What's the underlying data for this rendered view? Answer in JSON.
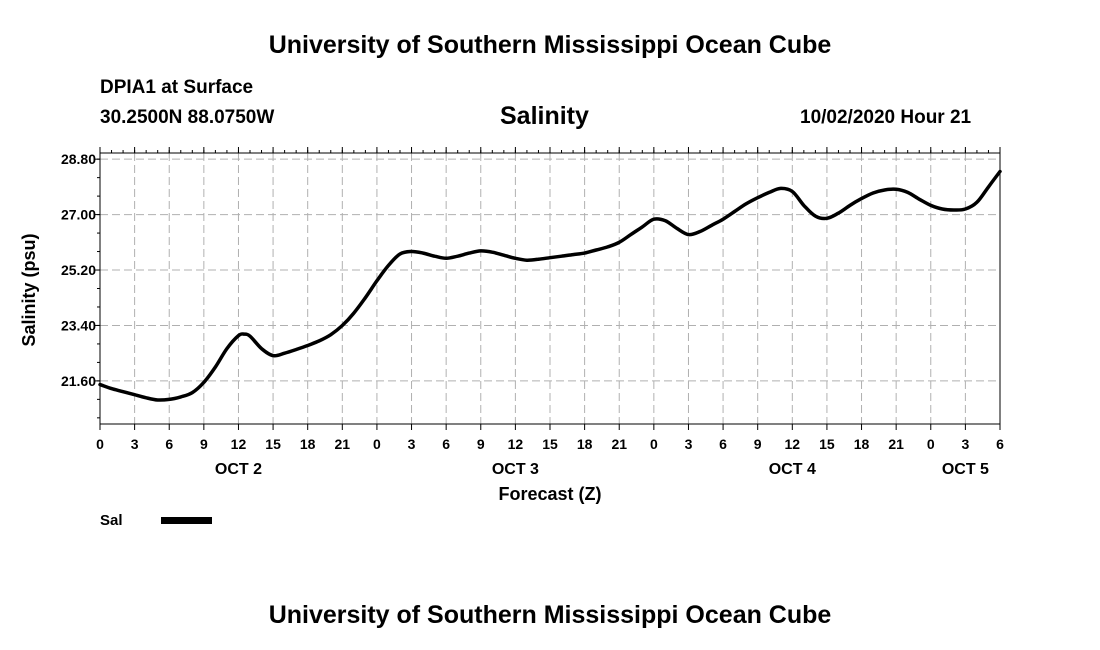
{
  "header": {
    "title_top": "University of Southern Mississippi Ocean Cube",
    "title_bottom": "University of Southern Mississippi Ocean Cube",
    "station": "DPIA1 at Surface",
    "coords": "30.2500N 88.0750W",
    "plot_title": "Salinity",
    "datetime": "10/02/2020 Hour 21"
  },
  "legend": {
    "label": "Sal",
    "color": "#000000"
  },
  "chart_data": {
    "type": "line",
    "title": "Salinity",
    "xlabel": "Forecast (Z)",
    "ylabel": "Salinity (psu)",
    "xlim": [
      0,
      78
    ],
    "ylim": [
      20.2,
      29.0
    ],
    "yticks": [
      21.6,
      23.4,
      25.2,
      27.0,
      28.8
    ],
    "ytick_labels": [
      "21.60",
      "23.40",
      "25.20",
      "27.00",
      "28.80"
    ],
    "xticks": [
      0,
      3,
      6,
      9,
      12,
      15,
      18,
      21,
      24,
      27,
      30,
      33,
      36,
      39,
      42,
      45,
      48,
      51,
      54,
      57,
      60,
      63,
      66,
      69,
      72,
      75,
      78
    ],
    "xtick_labels": [
      "0",
      "3",
      "6",
      "9",
      "12",
      "15",
      "18",
      "21",
      "0",
      "3",
      "6",
      "9",
      "12",
      "15",
      "18",
      "21",
      "0",
      "3",
      "6",
      "9",
      "12",
      "15",
      "18",
      "21",
      "0",
      "3",
      "6"
    ],
    "day_labels": [
      {
        "label": "OCT 2",
        "x": 12
      },
      {
        "label": "OCT 3",
        "x": 36
      },
      {
        "label": "OCT 4",
        "x": 60
      },
      {
        "label": "OCT 5",
        "x": 75
      }
    ],
    "grid": true,
    "series": [
      {
        "name": "Sal",
        "color": "#000000",
        "x": [
          0,
          1,
          2,
          3,
          4,
          5,
          6,
          7,
          8,
          9,
          10,
          11,
          12,
          12.5,
          13,
          14,
          15,
          16,
          17,
          18,
          19,
          20,
          21,
          22,
          23,
          24,
          25,
          26,
          27,
          28,
          29,
          30,
          31,
          32,
          33,
          34,
          35,
          36,
          37,
          38,
          39,
          40,
          41,
          42,
          43,
          44,
          45,
          46,
          47,
          48,
          49,
          50,
          51,
          52,
          53,
          54,
          55,
          56,
          57,
          58,
          59,
          60,
          61,
          62,
          63,
          64,
          65,
          66,
          67,
          68,
          69,
          70,
          71,
          72,
          73,
          74,
          75,
          76,
          77,
          78
        ],
        "values": [
          21.48,
          21.35,
          21.25,
          21.15,
          21.05,
          20.98,
          21.0,
          21.08,
          21.22,
          21.55,
          22.05,
          22.65,
          23.07,
          23.12,
          23.05,
          22.65,
          22.42,
          22.5,
          22.62,
          22.75,
          22.9,
          23.1,
          23.4,
          23.8,
          24.3,
          24.85,
          25.35,
          25.72,
          25.8,
          25.75,
          25.65,
          25.58,
          25.65,
          25.75,
          25.82,
          25.78,
          25.68,
          25.58,
          25.52,
          25.55,
          25.6,
          25.65,
          25.7,
          25.75,
          25.85,
          25.95,
          26.1,
          26.35,
          26.6,
          26.85,
          26.8,
          26.55,
          26.35,
          26.45,
          26.65,
          26.85,
          27.1,
          27.35,
          27.55,
          27.72,
          27.85,
          27.75,
          27.3,
          26.95,
          26.88,
          27.05,
          27.3,
          27.52,
          27.7,
          27.8,
          27.82,
          27.72,
          27.5,
          27.3,
          27.18,
          27.15,
          27.18,
          27.4,
          27.9,
          28.4
        ]
      }
    ]
  }
}
